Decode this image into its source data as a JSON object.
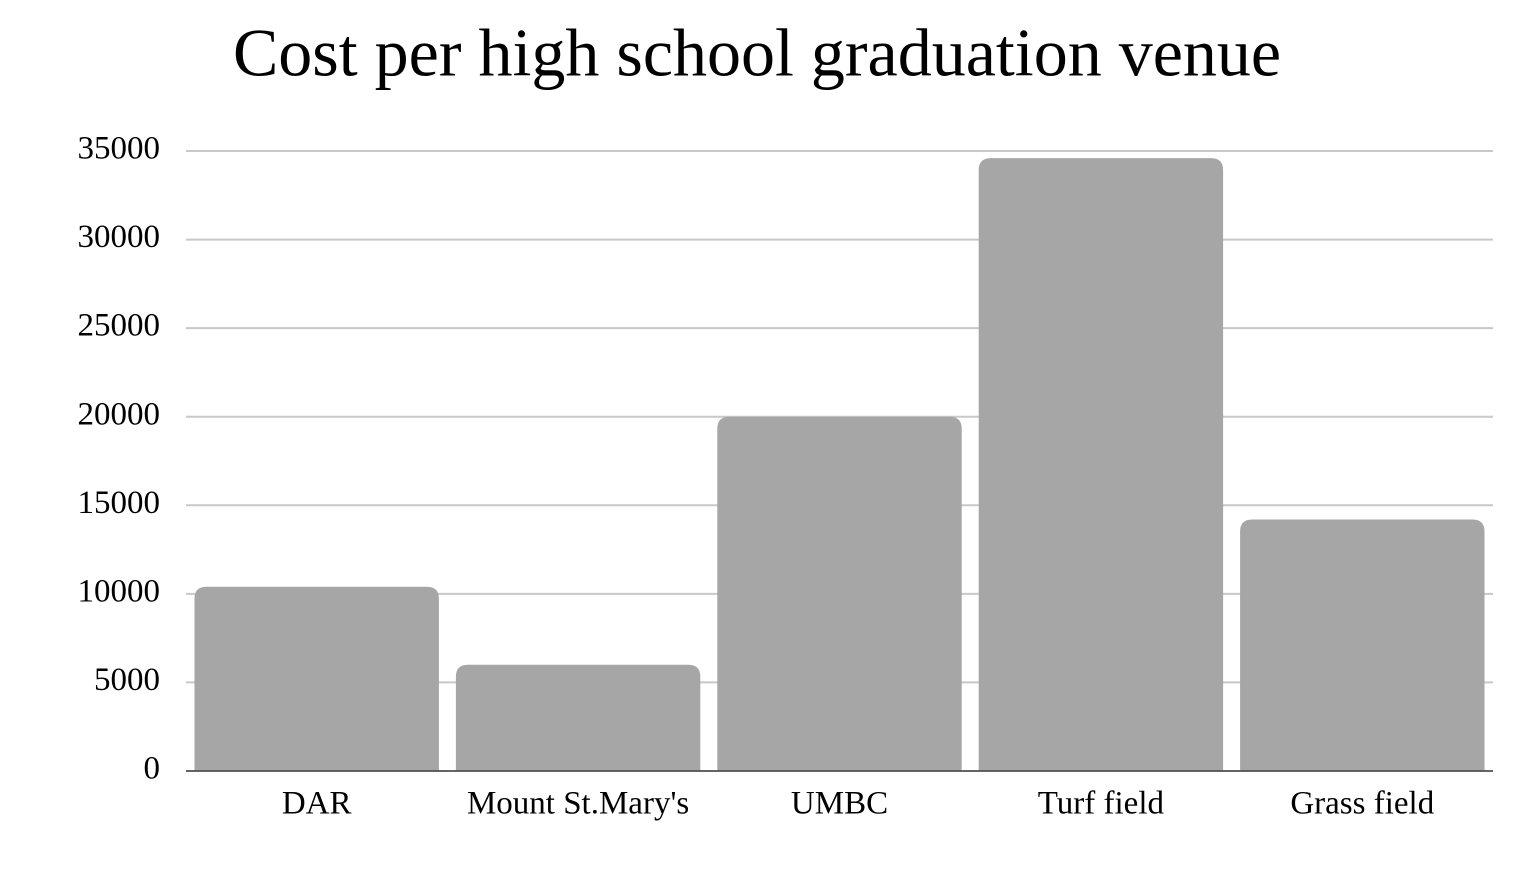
{
  "chart_data": {
    "type": "bar",
    "title": "Cost per high school graduation venue",
    "categories": [
      "DAR",
      "Mount St.Mary's",
      "UMBC",
      "Turf field",
      "Grass field"
    ],
    "values": [
      10400,
      6000,
      20000,
      34600,
      14200
    ],
    "color": "#a6a6a6",
    "ylim": [
      0,
      35000
    ],
    "yticks": [
      0,
      5000,
      10000,
      15000,
      20000,
      25000,
      30000,
      35000
    ],
    "grid": true
  }
}
